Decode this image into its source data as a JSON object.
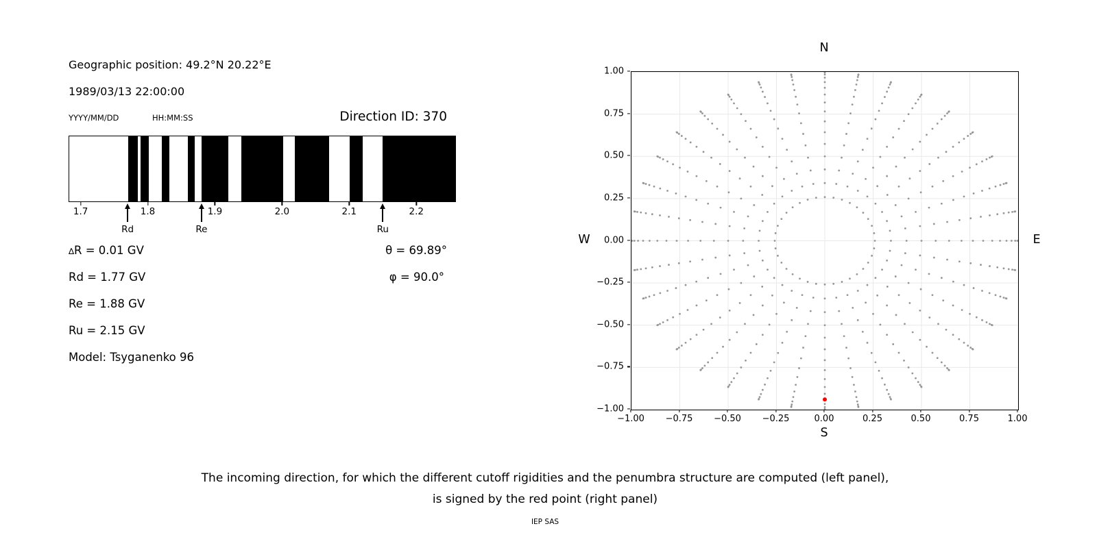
{
  "left_panel": {
    "geo_position": "Geographic position: 49.2°N 20.22°E",
    "datetime": "1989/03/13 22:00:00",
    "date_format_hint": "YYYY/MM/DD",
    "time_format_hint": "HH:MM:SS",
    "direction_id": "Direction ID: 370",
    "params": {
      "delta_symbol": "∆",
      "delta_rest": "R = 0.01 GV",
      "rd": "Rd = 1.77 GV",
      "re": "Re = 1.88 GV",
      "ru": "Ru = 2.15 GV",
      "model": "Model: Tsyganenko 96",
      "theta": "θ = 69.89°",
      "phi": "φ = 90.0°"
    }
  },
  "caption": {
    "line1": "The incoming direction, for which the different cutoff rigidities and the penumbra structure are computed (left panel),",
    "line2": "is signed by the red point (right panel)",
    "credit": "IEP SAS"
  },
  "chart_data": [
    {
      "name": "penumbra_structure",
      "type": "bar",
      "xlim": [
        1.682,
        2.259
      ],
      "xticks": [
        1.7,
        1.8,
        1.9,
        2.0,
        2.1,
        2.2
      ],
      "xtick_labels": [
        "1.7",
        "1.8",
        "1.9",
        "2.0",
        "2.1",
        "2.2"
      ],
      "bar_color": "#000000",
      "black_bands_gv": [
        [
          1.77,
          1.784
        ],
        [
          1.789,
          1.801
        ],
        [
          1.82,
          1.832
        ],
        [
          1.859,
          1.87
        ],
        [
          1.88,
          1.92
        ],
        [
          1.939,
          2.002
        ],
        [
          2.019,
          2.07
        ],
        [
          2.101,
          2.121
        ],
        [
          2.15,
          2.259
        ]
      ],
      "markers": [
        {
          "label": "Rd",
          "value": 1.77
        },
        {
          "label": "Re",
          "value": 1.88
        },
        {
          "label": "Ru",
          "value": 2.15
        }
      ]
    },
    {
      "name": "incoming_direction_map",
      "type": "scatter",
      "xlim": [
        -1,
        1
      ],
      "ylim": [
        -1,
        1
      ],
      "grid": true,
      "grid_color": "#e9e9e9",
      "dot_color": "#969696",
      "xticks": [
        -1,
        -0.75,
        -0.5,
        -0.25,
        0,
        0.25,
        0.5,
        0.75,
        1
      ],
      "yticks": [
        1,
        0.75,
        0.5,
        0.25,
        0,
        -0.25,
        -0.5,
        -0.75,
        -1
      ],
      "xtick_labels": [
        "−1.00",
        "−0.75",
        "−0.50",
        "−0.25",
        "0.00",
        "0.25",
        "0.50",
        "0.75",
        "1.00"
      ],
      "ytick_labels": [
        "1.00",
        "0.75",
        "0.50",
        "0.25",
        "0.00",
        "−0.25",
        "−0.50",
        "−0.75",
        "−1.00"
      ],
      "compass": {
        "top": "N",
        "bottom": "S",
        "left": "W",
        "right": "E"
      },
      "azimuth_step_deg": 10,
      "zenith_deg": [
        15,
        20,
        25,
        30,
        35,
        40,
        45,
        50,
        55,
        60,
        65,
        70,
        75,
        80,
        85,
        90
      ],
      "radii": [
        0.2588,
        0.342,
        0.4226,
        0.5,
        0.5736,
        0.6428,
        0.7071,
        0.766,
        0.8192,
        0.866,
        0.9063,
        0.9397,
        0.9659,
        0.9848,
        0.9962,
        1.0
      ],
      "red_point": {
        "x": 0.0,
        "y": -0.9397,
        "color": "#ff0000"
      }
    }
  ]
}
